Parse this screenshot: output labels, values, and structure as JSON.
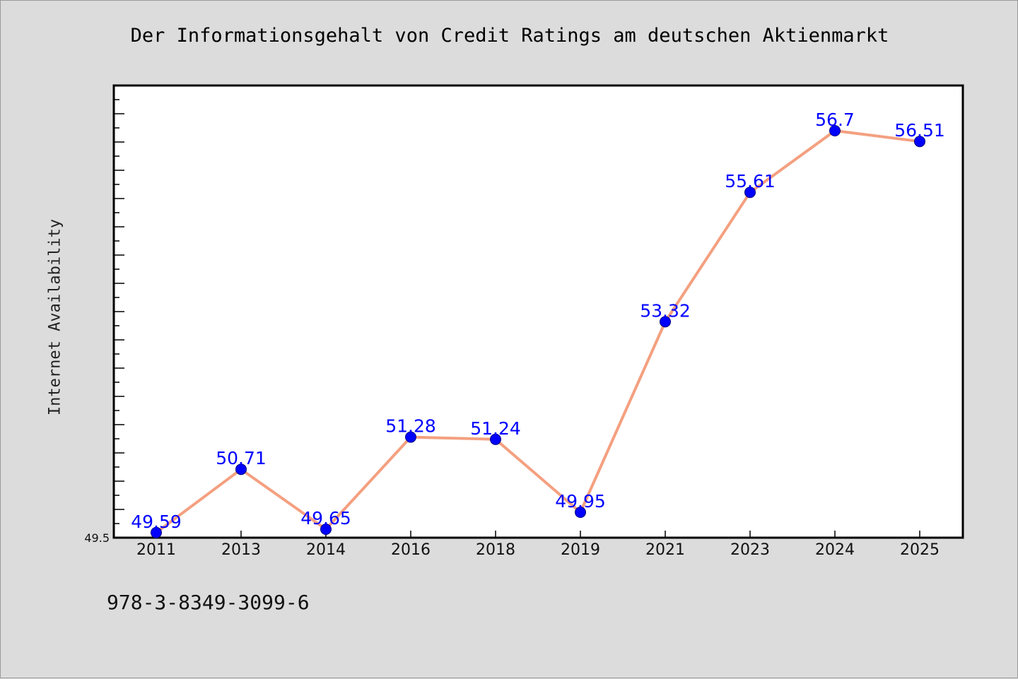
{
  "chart_data": {
    "type": "line",
    "title": "Der Informationsgehalt von Credit Ratings am deutschen Aktienmarkt",
    "xlabel": "",
    "ylabel": "Internet Availability",
    "categories": [
      "2011",
      "2013",
      "2014",
      "2016",
      "2018",
      "2019",
      "2021",
      "2023",
      "2024",
      "2025"
    ],
    "series": [
      {
        "values": [
          49.59,
          50.71,
          49.65,
          51.28,
          51.24,
          49.95,
          53.32,
          55.61,
          56.7,
          56.51
        ],
        "data_labels": [
          "49.59",
          "50.71",
          "49.65",
          "51.28",
          "51.24",
          "49.95",
          "53.32",
          "55.61",
          "56.7",
          "56.51"
        ]
      }
    ],
    "ylim": [
      49.5,
      57.5
    ],
    "yticks": [
      49.5
    ],
    "ytick_labels": [
      "49.5"
    ],
    "grid": false,
    "line_color": "#f4a080",
    "marker_color": "#0000ff",
    "label_color": "#0000ff"
  },
  "footer": {
    "code": "978-3-8349-3099-6"
  }
}
